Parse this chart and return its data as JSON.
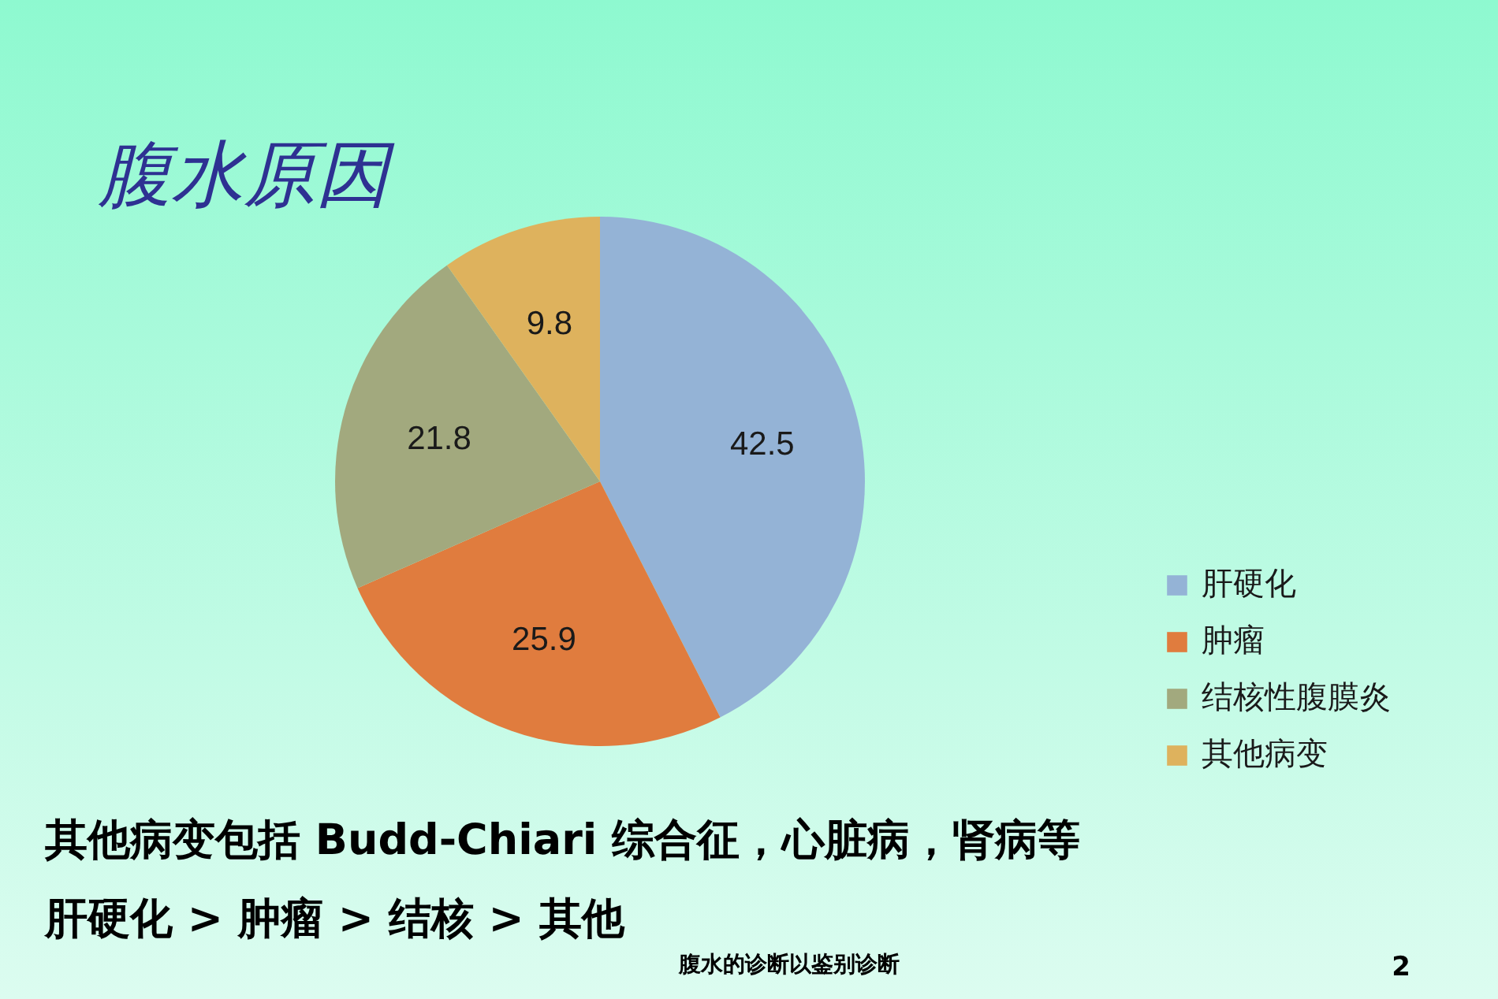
{
  "chart_data": {
    "type": "pie",
    "title": "腹水原因",
    "categories": [
      "肝硬化",
      "肿瘤",
      "结核性腹膜炎",
      "其他病变"
    ],
    "values": [
      42.5,
      25.9,
      21.8,
      9.8
    ],
    "colors": [
      "#94b3d6",
      "#e07c3e",
      "#a2a97e",
      "#deb25d"
    ],
    "data_labels": true,
    "legend": "bottom right",
    "annotations": [
      "其他病变包括 Budd-Chiari 综合征，心脏病，肾病等",
      "肝硬化 > 肿瘤 > 结核 > 其他",
      "腹水的诊断以鉴别诊断",
      "2"
    ]
  }
}
